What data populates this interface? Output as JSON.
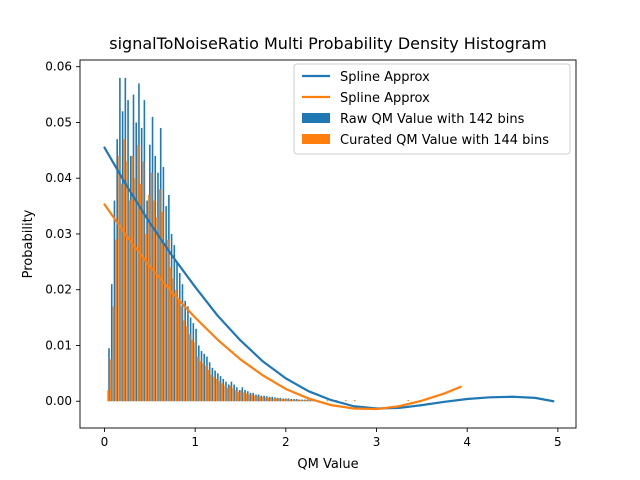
{
  "chart_data": {
    "type": "bar",
    "title": "signalToNoiseRatio Multi Probability Density Histogram",
    "xlabel": "QM Value",
    "ylabel": "Probability",
    "xlim": [
      -0.27,
      5.2
    ],
    "ylim": [
      -0.0048,
      0.0612
    ],
    "xticks": [
      "0",
      "1",
      "2",
      "3",
      "4",
      "5"
    ],
    "yticks": [
      "0.00",
      "0.01",
      "0.02",
      "0.03",
      "0.04",
      "0.05",
      "0.06"
    ],
    "legend_position": "top-right",
    "series": [
      {
        "name": "Spline Approx",
        "kind": "line",
        "color": "#1f77b4",
        "x": [
          0.0,
          0.25,
          0.5,
          0.75,
          1.0,
          1.25,
          1.5,
          1.75,
          2.0,
          2.25,
          2.5,
          2.75,
          3.0,
          3.25,
          3.5,
          3.75,
          4.0,
          4.25,
          4.5,
          4.75,
          4.95
        ],
        "values": [
          0.0455,
          0.0385,
          0.032,
          0.026,
          0.0205,
          0.0153,
          0.0109,
          0.0071,
          0.0041,
          0.0018,
          0.0002,
          -0.0009,
          -0.0013,
          -0.0012,
          -0.0007,
          -0.0001,
          0.0004,
          0.0007,
          0.0008,
          0.0006,
          0.0
        ]
      },
      {
        "name": "Spline Approx",
        "kind": "line",
        "color": "#ff7f0e",
        "x": [
          0.0,
          0.25,
          0.5,
          0.75,
          1.0,
          1.25,
          1.5,
          1.75,
          2.0,
          2.25,
          2.5,
          2.75,
          3.0,
          3.25,
          3.5,
          3.75,
          3.93
        ],
        "values": [
          0.0353,
          0.0295,
          0.0242,
          0.0194,
          0.015,
          0.011,
          0.0075,
          0.0046,
          0.0022,
          0.0005,
          -0.0007,
          -0.0013,
          -0.0014,
          -0.0009,
          0.0001,
          0.0014,
          0.0026
        ]
      },
      {
        "name": "Raw QM Value with 142 bins",
        "kind": "bar",
        "color": "#1f77b4",
        "bin_width": 0.0175,
        "x": [
          0.05,
          0.08,
          0.11,
          0.14,
          0.17,
          0.2,
          0.23,
          0.26,
          0.29,
          0.32,
          0.35,
          0.38,
          0.41,
          0.44,
          0.47,
          0.5,
          0.53,
          0.56,
          0.59,
          0.62,
          0.65,
          0.68,
          0.71,
          0.74,
          0.77,
          0.8,
          0.83,
          0.86,
          0.89,
          0.92,
          0.95,
          0.98,
          1.01,
          1.04,
          1.07,
          1.1,
          1.13,
          1.16,
          1.19,
          1.22,
          1.25,
          1.28,
          1.31,
          1.34,
          1.37,
          1.4,
          1.43,
          1.46,
          1.49,
          1.52,
          1.55,
          1.58,
          1.61,
          1.64,
          1.67,
          1.7,
          1.73,
          1.76,
          1.79,
          1.82,
          1.85,
          1.88,
          1.91,
          1.94,
          1.97,
          2.0,
          2.03,
          2.06,
          2.09,
          2.12,
          2.15,
          2.18,
          2.21,
          2.24,
          2.27,
          2.3,
          2.34
        ],
        "values": [
          0.0095,
          0.021,
          0.036,
          0.047,
          0.058,
          0.052,
          0.058,
          0.054,
          0.044,
          0.055,
          0.05,
          0.057,
          0.049,
          0.054,
          0.036,
          0.046,
          0.051,
          0.044,
          0.041,
          0.049,
          0.042,
          0.035,
          0.037,
          0.03,
          0.028,
          0.025,
          0.023,
          0.021,
          0.018,
          0.017,
          0.015,
          0.014,
          0.013,
          0.01,
          0.009,
          0.0085,
          0.008,
          0.007,
          0.006,
          0.0055,
          0.005,
          0.0045,
          0.004,
          0.0035,
          0.003,
          0.0035,
          0.003,
          0.0025,
          0.002,
          0.0025,
          0.002,
          0.0018,
          0.0015,
          0.0015,
          0.0012,
          0.0012,
          0.001,
          0.001,
          0.0009,
          0.0008,
          0.0008,
          0.0007,
          0.0006,
          0.0006,
          0.0005,
          0.0005,
          0.0005,
          0.0004,
          0.0004,
          0.0004,
          0.0003,
          0.0003,
          0.0003,
          0.0003,
          0.0003,
          0.0002,
          0.0002
        ]
      },
      {
        "name": "Curated QM Value with 144 bins",
        "kind": "bar",
        "color": "#ff7f0e",
        "bin_width": 0.0175,
        "x": [
          0.04,
          0.07,
          0.1,
          0.13,
          0.16,
          0.19,
          0.22,
          0.25,
          0.28,
          0.31,
          0.34,
          0.37,
          0.4,
          0.43,
          0.46,
          0.49,
          0.52,
          0.55,
          0.58,
          0.61,
          0.64,
          0.67,
          0.7,
          0.73,
          0.76,
          0.79,
          0.82,
          0.85,
          0.88,
          0.91,
          0.94,
          0.97,
          1.0,
          1.03,
          1.06,
          1.09,
          1.12,
          1.15,
          1.18,
          1.21,
          1.24,
          1.27,
          1.3,
          1.33,
          1.36,
          1.39,
          1.42,
          1.45,
          1.48,
          1.51,
          1.54,
          1.57,
          1.6,
          1.63,
          1.66,
          1.69,
          1.72,
          1.75,
          1.78,
          1.81,
          1.84,
          1.87,
          1.9,
          1.93,
          1.96,
          1.99,
          2.02,
          2.05,
          2.08,
          2.11,
          2.14,
          2.17,
          2.2,
          2.23,
          2.26,
          2.29,
          2.32,
          2.46,
          2.56,
          2.66,
          2.76,
          3.35
        ],
        "values": [
          0.002,
          0.0075,
          0.017,
          0.029,
          0.044,
          0.039,
          0.047,
          0.043,
          0.036,
          0.044,
          0.04,
          0.046,
          0.039,
          0.043,
          0.03,
          0.037,
          0.041,
          0.036,
          0.033,
          0.038,
          0.034,
          0.028,
          0.029,
          0.024,
          0.022,
          0.02,
          0.018,
          0.017,
          0.0145,
          0.0135,
          0.012,
          0.011,
          0.0105,
          0.008,
          0.0072,
          0.0068,
          0.0064,
          0.0056,
          0.0048,
          0.0044,
          0.004,
          0.0036,
          0.0032,
          0.0028,
          0.0024,
          0.0028,
          0.0024,
          0.002,
          0.0016,
          0.002,
          0.0016,
          0.0014,
          0.0012,
          0.0012,
          0.001,
          0.001,
          0.0008,
          0.0008,
          0.0007,
          0.0006,
          0.0006,
          0.0005,
          0.0005,
          0.0005,
          0.0004,
          0.0004,
          0.0004,
          0.0003,
          0.0003,
          0.0003,
          0.0003,
          0.0002,
          0.0002,
          0.0002,
          0.0002,
          0.0002,
          0.0002,
          0.0002,
          0.0002,
          0.0002,
          0.0002,
          0.0002
        ]
      }
    ]
  }
}
